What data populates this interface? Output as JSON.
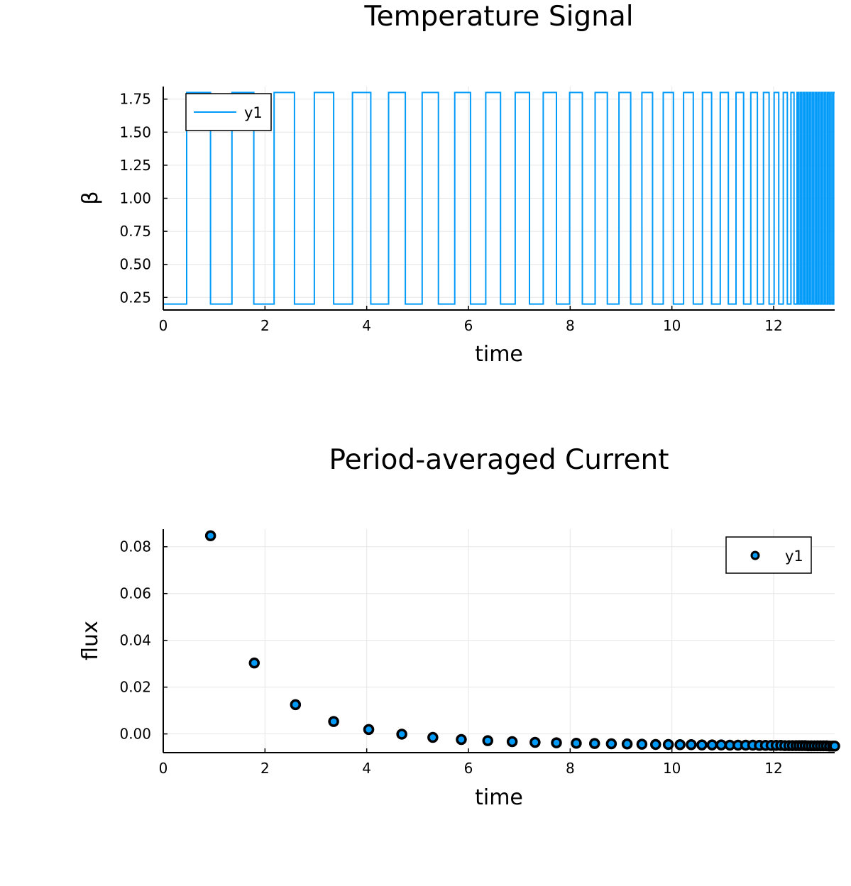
{
  "chart_data": [
    {
      "type": "line",
      "title": "Temperature Signal",
      "xlabel": "time",
      "ylabel": "β",
      "xlim": [
        0,
        13.2
      ],
      "ylim": [
        0.155,
        1.845
      ],
      "xticks": [
        0,
        2,
        4,
        6,
        8,
        10,
        12
      ],
      "xtick_labels": [
        "0",
        "2",
        "4",
        "6",
        "8",
        "10",
        "12"
      ],
      "yticks": [
        0.25,
        0.5,
        0.75,
        1.0,
        1.25,
        1.5,
        1.75
      ],
      "ytick_labels": [
        "0.25",
        "0.50",
        "0.75",
        "1.00",
        "1.25",
        "1.50",
        "1.75"
      ],
      "grid": true,
      "legend": "top-left",
      "color": "#009af9",
      "series": [
        {
          "name": "y1",
          "low": 0.2,
          "high": 1.8,
          "transitions": [
            0.46,
            0.93,
            1.35,
            1.78,
            2.18,
            2.58,
            2.97,
            3.35,
            3.72,
            4.08,
            4.43,
            4.76,
            5.09,
            5.41,
            5.73,
            6.04,
            6.34,
            6.63,
            6.92,
            7.2,
            7.47,
            7.73,
            7.99,
            8.24,
            8.49,
            8.73,
            8.96,
            9.19,
            9.41,
            9.62,
            9.83,
            10.03,
            10.23,
            10.42,
            10.6,
            10.78,
            10.95,
            11.11,
            11.26,
            11.41,
            11.55,
            11.68,
            11.8,
            11.91,
            12.01,
            12.1,
            12.19,
            12.27,
            12.34,
            12.4,
            12.46
          ],
          "dense_from": 12.46,
          "dense_period": 0.03
        }
      ]
    },
    {
      "type": "scatter",
      "title": "Period-averaged Current",
      "xlabel": "time",
      "ylabel": "flux",
      "xlim": [
        0,
        13.2
      ],
      "ylim": [
        -0.008,
        0.0875
      ],
      "xticks": [
        0,
        2,
        4,
        6,
        8,
        10,
        12
      ],
      "xtick_labels": [
        "0",
        "2",
        "4",
        "6",
        "8",
        "10",
        "12"
      ],
      "yticks": [
        0.0,
        0.02,
        0.04,
        0.06,
        0.08
      ],
      "ytick_labels": [
        "0.00",
        "0.02",
        "0.04",
        "0.06",
        "0.08"
      ],
      "grid": true,
      "legend": "top-right",
      "color": "#009af9",
      "series": [
        {
          "name": "y1",
          "x": [
            0.93,
            1.79,
            2.6,
            3.35,
            4.04,
            4.69,
            5.3,
            5.86,
            6.38,
            6.86,
            7.31,
            7.73,
            8.12,
            8.48,
            8.81,
            9.12,
            9.41,
            9.68,
            9.93,
            10.16,
            10.38,
            10.59,
            10.79,
            10.97,
            11.14,
            11.3,
            11.45,
            11.59,
            11.72,
            11.84,
            11.95,
            12.05,
            12.14,
            12.22,
            12.3,
            12.37,
            12.44,
            12.5,
            12.56,
            12.62,
            12.68,
            12.74,
            12.8,
            12.86,
            12.92,
            12.98,
            13.04,
            13.1,
            13.16,
            13.2
          ],
          "y": [
            0.0847,
            0.0303,
            0.0125,
            0.0053,
            0.0019,
            -0.0001,
            -0.0015,
            -0.0024,
            -0.0029,
            -0.0033,
            -0.0036,
            -0.0038,
            -0.004,
            -0.0041,
            -0.0042,
            -0.0043,
            -0.0044,
            -0.0045,
            -0.0045,
            -0.0046,
            -0.0046,
            -0.0047,
            -0.0047,
            -0.0047,
            -0.0048,
            -0.0048,
            -0.0048,
            -0.0048,
            -0.0049,
            -0.0049,
            -0.0049,
            -0.0049,
            -0.0049,
            -0.005,
            -0.005,
            -0.005,
            -0.005,
            -0.005,
            -0.005,
            -0.005,
            -0.0051,
            -0.0051,
            -0.0051,
            -0.0051,
            -0.0051,
            -0.0051,
            -0.0051,
            -0.0052,
            -0.0052,
            -0.0052
          ]
        }
      ]
    }
  ]
}
